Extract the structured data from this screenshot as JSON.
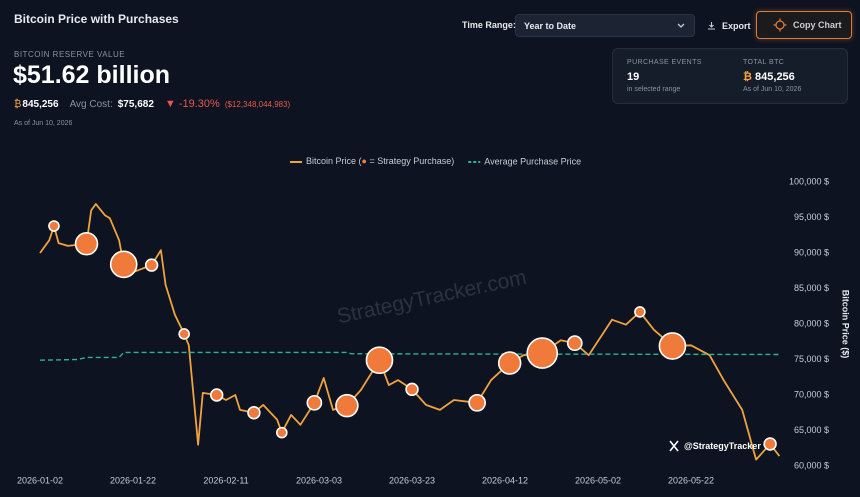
{
  "header": {
    "title": "Bitcoin Price with Purchases",
    "time_range_label": "Time Range:",
    "time_range_value": "Year to Date",
    "export": "Export",
    "copy_chart": "Copy Chart"
  },
  "reserve": {
    "label": "BITCOIN RESERVE VALUE",
    "value": "$51.62 billion",
    "btc_symbol": "₿",
    "btc": "845,256",
    "avg_cost_label": "Avg Cost:",
    "avg_cost": "$75,682",
    "change": "▼ -19.30%",
    "change_amount": "($12,348,044,983)",
    "as_of": "As of Jun 10, 2026"
  },
  "summary": {
    "purchase_events_label": "PURCHASE EVENTS",
    "purchase_events": "19",
    "purchase_events_note": "in selected range",
    "total_btc_label": "TOTAL BTC",
    "total_btc_symbol": "₿",
    "total_btc": "845,256",
    "total_btc_note": "As of Jun 10, 2026"
  },
  "chart_data": {
    "type": "line",
    "ylabel": "Bitcoin Price ($)",
    "grid": false,
    "legend": "top",
    "xlim": [
      "2026-01-02",
      "2026-06-10"
    ],
    "xticks": [
      "2026-01-02",
      "2026-01-22",
      "2026-02-11",
      "2026-03-03",
      "2026-03-23",
      "2026-04-12",
      "2026-05-02",
      "2026-05-22"
    ],
    "ylim": [
      58500,
      101500
    ],
    "yticks": [
      {
        "value": 60000,
        "label": "60,000 $"
      },
      {
        "value": 65000,
        "label": "65,000 $"
      },
      {
        "value": 70000,
        "label": "70,000 $"
      },
      {
        "value": 75000,
        "label": "75,000 $"
      },
      {
        "value": 80000,
        "label": "80,000 $"
      },
      {
        "value": 85000,
        "label": "85,000 $"
      },
      {
        "value": 90000,
        "label": "90,000 $"
      },
      {
        "value": 95000,
        "label": "95,000 $"
      },
      {
        "value": 100000,
        "label": "100,000 $"
      }
    ],
    "series": [
      {
        "name": "Bitcoin Price (● = Strategy Purchase)",
        "color": "#f0a23f",
        "x": [
          "2026-01-02",
          "2026-01-04",
          "2026-01-05",
          "2026-01-06",
          "2026-01-08",
          "2026-01-12",
          "2026-01-13",
          "2026-01-14",
          "2026-01-16",
          "2026-01-17",
          "2026-01-19",
          "2026-01-20",
          "2026-01-22",
          "2026-01-26",
          "2026-01-28",
          "2026-01-29",
          "2026-01-31",
          "2026-02-02",
          "2026-02-03",
          "2026-02-05",
          "2026-02-06",
          "2026-02-09",
          "2026-02-11",
          "2026-02-13",
          "2026-02-14",
          "2026-02-17",
          "2026-02-19",
          "2026-02-22",
          "2026-02-23",
          "2026-02-25",
          "2026-02-27",
          "2026-03-02",
          "2026-03-04",
          "2026-03-06",
          "2026-03-09",
          "2026-03-12",
          "2026-03-16",
          "2026-03-18",
          "2026-03-20",
          "2026-03-23",
          "2026-03-26",
          "2026-03-29",
          "2026-04-01",
          "2026-04-06",
          "2026-04-09",
          "2026-04-13",
          "2026-04-16",
          "2026-04-20",
          "2026-04-24",
          "2026-04-27",
          "2026-04-30",
          "2026-05-05",
          "2026-05-08",
          "2026-05-11",
          "2026-05-14",
          "2026-05-18",
          "2026-05-22",
          "2026-05-26",
          "2026-05-29",
          "2026-06-02",
          "2026-06-05",
          "2026-06-08",
          "2026-06-10"
        ],
        "values": [
          90000,
          91800,
          93800,
          91400,
          91000,
          91300,
          96000,
          96900,
          95300,
          94900,
          91800,
          88400,
          87300,
          88300,
          90400,
          85500,
          81300,
          78600,
          77000,
          63000,
          70300,
          70000,
          69300,
          70000,
          67900,
          67500,
          68600,
          66500,
          64700,
          67200,
          65800,
          68900,
          72400,
          67900,
          68500,
          70700,
          74900,
          71400,
          72100,
          70800,
          68600,
          67900,
          69300,
          68900,
          72100,
          74500,
          75600,
          75900,
          77700,
          77300,
          75600,
          80600,
          79900,
          81700,
          79200,
          76900,
          77000,
          75600,
          72100,
          67900,
          60900,
          63100,
          61400
        ]
      },
      {
        "name": "Average Purchase Price",
        "color": "#2fb38c",
        "dashed": true,
        "x": [
          "2026-01-02",
          "2026-01-10",
          "2026-01-12",
          "2026-01-19",
          "2026-01-20",
          "2026-03-09",
          "2026-03-10",
          "2026-06-10"
        ],
        "values": [
          74900,
          75000,
          75300,
          75300,
          76000,
          76000,
          75800,
          75700
        ]
      }
    ],
    "purchases": {
      "color": "#f07a3a",
      "x": [
        "2026-01-05",
        "2026-01-12",
        "2026-01-20",
        "2026-01-26",
        "2026-02-02",
        "2026-02-09",
        "2026-02-17",
        "2026-02-23",
        "2026-03-02",
        "2026-03-09",
        "2026-03-16",
        "2026-03-23",
        "2026-04-06",
        "2026-04-13",
        "2026-04-20",
        "2026-04-27",
        "2026-05-11",
        "2026-05-18",
        "2026-06-08"
      ],
      "values": [
        93800,
        91300,
        88400,
        88300,
        78600,
        70000,
        67500,
        64700,
        68900,
        68500,
        74900,
        70800,
        68900,
        74500,
        75900,
        77300,
        81700,
        76900,
        63100
      ],
      "sizes": [
        1000,
        4800,
        6800,
        1400,
        1000,
        1400,
        1400,
        1000,
        2000,
        4800,
        6800,
        1400,
        2600,
        4800,
        9000,
        2000,
        1000,
        6800,
        1400
      ]
    },
    "watermark": "StrategyTracker.com",
    "credit": "@StrategyTracker"
  }
}
